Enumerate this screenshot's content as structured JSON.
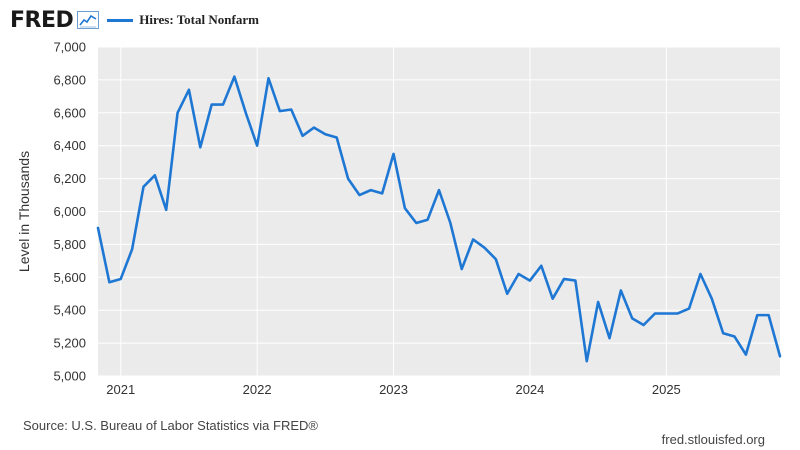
{
  "brand": {
    "logo_text": "FRED",
    "logo_icon": "line-chart-icon",
    "line_color": "#1f77d4"
  },
  "chart_data": {
    "type": "line",
    "title": "",
    "legend": "Hires: Total Nonfarm",
    "xlabel": "",
    "ylabel": "Level in Thousands",
    "ylim": [
      5000,
      7000
    ],
    "yticks": [
      "7,000",
      "6,800",
      "6,600",
      "6,400",
      "6,200",
      "6,000",
      "5,800",
      "5,600",
      "5,400",
      "5,200",
      "5,000"
    ],
    "xticks": [
      "2021",
      "2022",
      "2023",
      "2024",
      "2025"
    ],
    "xlim": [
      "2020-11",
      "2025-11"
    ],
    "grid": true,
    "plot_background": "#ebebeb",
    "series": [
      {
        "name": "Hires: Total Nonfarm",
        "color": "#1f77d4",
        "points": [
          {
            "x": "2020-11",
            "y": 5900
          },
          {
            "x": "2020-12",
            "y": 5570
          },
          {
            "x": "2021-01",
            "y": 5590
          },
          {
            "x": "2021-02",
            "y": 5770
          },
          {
            "x": "2021-03",
            "y": 6150
          },
          {
            "x": "2021-04",
            "y": 6220
          },
          {
            "x": "2021-05",
            "y": 6010
          },
          {
            "x": "2021-06",
            "y": 6600
          },
          {
            "x": "2021-07",
            "y": 6740
          },
          {
            "x": "2021-08",
            "y": 6390
          },
          {
            "x": "2021-09",
            "y": 6650
          },
          {
            "x": "2021-10",
            "y": 6650
          },
          {
            "x": "2021-11",
            "y": 6820
          },
          {
            "x": "2021-12",
            "y": 6600
          },
          {
            "x": "2022-01",
            "y": 6400
          },
          {
            "x": "2022-02",
            "y": 6810
          },
          {
            "x": "2022-03",
            "y": 6610
          },
          {
            "x": "2022-04",
            "y": 6620
          },
          {
            "x": "2022-05",
            "y": 6460
          },
          {
            "x": "2022-06",
            "y": 6510
          },
          {
            "x": "2022-07",
            "y": 6470
          },
          {
            "x": "2022-08",
            "y": 6450
          },
          {
            "x": "2022-09",
            "y": 6200
          },
          {
            "x": "2022-10",
            "y": 6100
          },
          {
            "x": "2022-11",
            "y": 6130
          },
          {
            "x": "2022-12",
            "y": 6110
          },
          {
            "x": "2023-01",
            "y": 6350
          },
          {
            "x": "2023-02",
            "y": 6020
          },
          {
            "x": "2023-03",
            "y": 5930
          },
          {
            "x": "2023-04",
            "y": 5950
          },
          {
            "x": "2023-05",
            "y": 6130
          },
          {
            "x": "2023-06",
            "y": 5930
          },
          {
            "x": "2023-07",
            "y": 5650
          },
          {
            "x": "2023-08",
            "y": 5830
          },
          {
            "x": "2023-09",
            "y": 5780
          },
          {
            "x": "2023-10",
            "y": 5710
          },
          {
            "x": "2023-11",
            "y": 5500
          },
          {
            "x": "2023-12",
            "y": 5620
          },
          {
            "x": "2024-01",
            "y": 5580
          },
          {
            "x": "2024-02",
            "y": 5670
          },
          {
            "x": "2024-03",
            "y": 5470
          },
          {
            "x": "2024-04",
            "y": 5590
          },
          {
            "x": "2024-05",
            "y": 5580
          },
          {
            "x": "2024-06",
            "y": 5090
          },
          {
            "x": "2024-07",
            "y": 5450
          },
          {
            "x": "2024-08",
            "y": 5230
          },
          {
            "x": "2024-09",
            "y": 5520
          },
          {
            "x": "2024-10",
            "y": 5350
          },
          {
            "x": "2024-11",
            "y": 5310
          },
          {
            "x": "2024-12",
            "y": 5380
          },
          {
            "x": "2025-01",
            "y": 5380
          },
          {
            "x": "2025-02",
            "y": 5380
          },
          {
            "x": "2025-03",
            "y": 5410
          },
          {
            "x": "2025-04",
            "y": 5620
          },
          {
            "x": "2025-05",
            "y": 5470
          },
          {
            "x": "2025-06",
            "y": 5260
          },
          {
            "x": "2025-07",
            "y": 5240
          },
          {
            "x": "2025-08",
            "y": 5130
          },
          {
            "x": "2025-09",
            "y": 5370
          },
          {
            "x": "2025-10",
            "y": 5370
          },
          {
            "x": "2025-11",
            "y": 5120
          }
        ]
      }
    ]
  },
  "footer": {
    "source": "Source: U.S. Bureau of Labor Statistics via FRED®",
    "url": "fred.stlouisfed.org"
  }
}
